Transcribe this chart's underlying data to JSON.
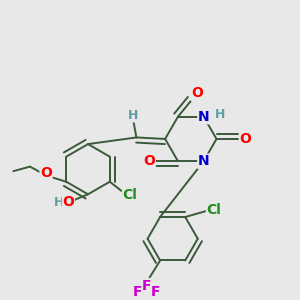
{
  "background_color": "#e8e8e8",
  "atom_colors": {
    "O": "#ff0000",
    "N": "#0000cd",
    "Cl": "#228b22",
    "F": "#cc00cc",
    "C": "#3a5a3a",
    "H": "#5f9ea0"
  },
  "bond_color": "#3a5a3a",
  "font_size": 10,
  "font_size_small": 9,
  "lw": 1.4
}
